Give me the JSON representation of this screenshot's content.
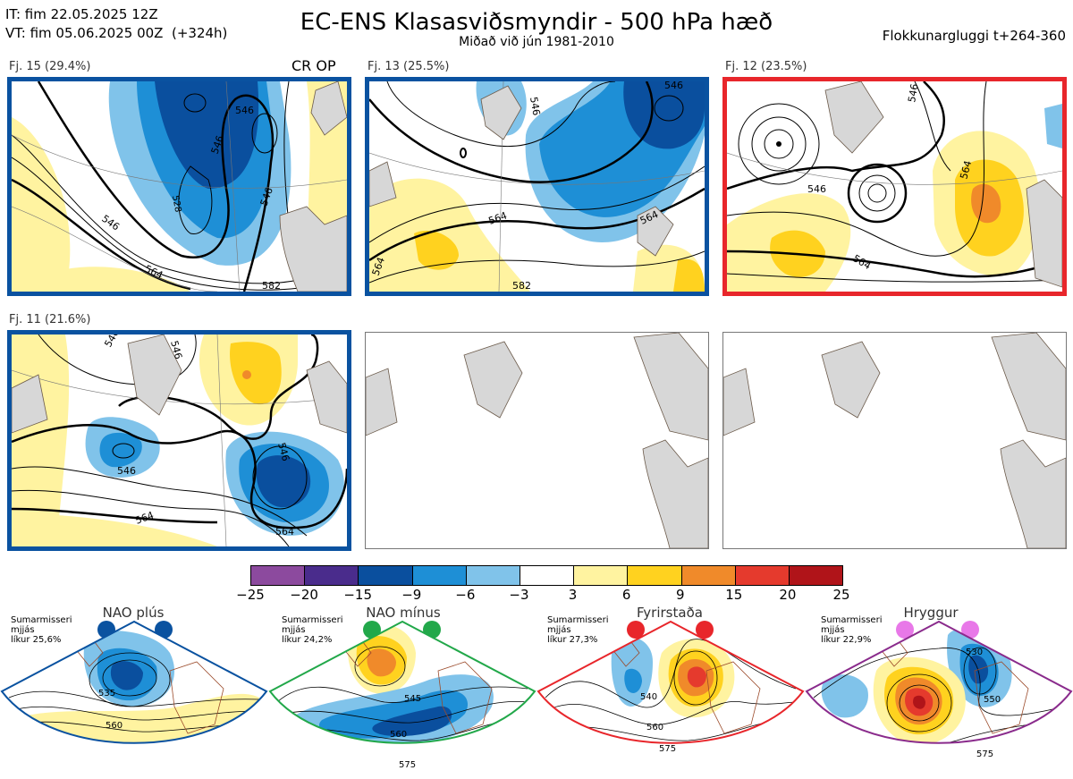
{
  "header": {
    "it_line": "IT: fim 22.05.2025 12Z",
    "vt_line": "VT: fim 05.06.2025 00Z  (+324h)",
    "title": "EC-ENS Klasasviðsmyndir - 500 hPa hæð",
    "subtitle": "Miðað við jún 1981-2010",
    "window_label": "Flokkunargluggi t+264-360"
  },
  "panels": [
    {
      "label": "Fj. 15 (29.4%)",
      "op_tag": "CR OP",
      "contour_labels": [
        "546",
        "546",
        "546",
        "528",
        "546",
        "564",
        "582"
      ]
    },
    {
      "label": "Fj. 13 (25.5%)",
      "contour_labels": [
        "546",
        "546",
        "564",
        "564",
        "564",
        "582"
      ]
    },
    {
      "label": "Fj. 12 (23.5%)",
      "contour_labels": [
        "546",
        "546",
        "564",
        "564"
      ]
    },
    {
      "label": "Fj. 11 (21.6%)",
      "contour_labels": [
        "546",
        "546",
        "546",
        "546",
        "564",
        "564"
      ]
    }
  ],
  "colorbar": {
    "ticks": [
      "−25",
      "−20",
      "−15",
      "−9",
      "−6",
      "−3",
      "3",
      "6",
      "9",
      "15",
      "20",
      "25"
    ],
    "colors": [
      "#8c4a9e",
      "#4a2c8c",
      "#0a4f9e",
      "#1e8fd6",
      "#80c3ea",
      "#ffffff",
      "#fff3a0",
      "#ffd21f",
      "#f08a2a",
      "#e53a2d",
      "#b01419"
    ]
  },
  "regimes": [
    {
      "name": "NAO plús",
      "text": "Sumarmisseri\nmjjás\nlíkur 25,6%",
      "labels": [
        "535",
        "560"
      ],
      "dot_color": "#0a52a0",
      "frame_color": "#0a52a0"
    },
    {
      "name": "NAO mínus",
      "text": "Sumarmisseri\nmjjás\nlíkur 24,2%",
      "labels": [
        "545",
        "560",
        "575"
      ],
      "dot_color": "#22a84a",
      "frame_color": "#22a84a"
    },
    {
      "name": "Fyrirstaða",
      "text": "Sumarmisseri\nmjjás\nlíkur 27,3%",
      "labels": [
        "540",
        "560",
        "575"
      ],
      "dot_color": "#e8262b",
      "frame_color": "#e8262b"
    },
    {
      "name": "Hryggur",
      "text": "Sumarmisseri\nmjjás\nlíkur 22,9%",
      "labels": [
        "530",
        "550",
        "575"
      ],
      "dot_color": "#e878e8",
      "frame_color": "#8a2b8c"
    }
  ]
}
